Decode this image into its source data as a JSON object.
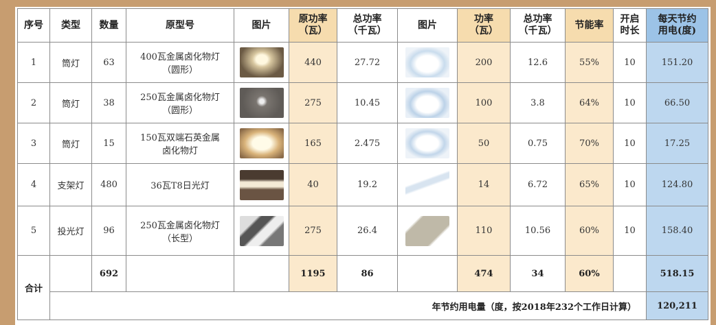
{
  "table": {
    "headers": [
      [
        "序号"
      ],
      [
        "类型"
      ],
      [
        "数量"
      ],
      [
        "原型号"
      ],
      [
        "图片"
      ],
      [
        "原功率",
        "（瓦）"
      ],
      [
        "总功率",
        "（千瓦）"
      ],
      [
        "图片"
      ],
      [
        "功率",
        "（瓦）"
      ],
      [
        "总功率",
        "（千瓦）"
      ],
      [
        "节能率"
      ],
      [
        "开启",
        "时长"
      ],
      [
        "每天节约",
        "用电(度)"
      ]
    ],
    "rows": [
      [
        "1",
        "筒灯",
        "63",
        [
          "400瓦金属卤化物灯",
          "（圆形）"
        ],
        "440",
        "27.72",
        "200",
        "12.6",
        "55%",
        "10",
        "151.20"
      ],
      [
        "2",
        "筒灯",
        "38",
        [
          "250瓦金属卤化物灯",
          "（圆形）"
        ],
        "275",
        "10.45",
        "100",
        "3.8",
        "64%",
        "10",
        "66.50"
      ],
      [
        "3",
        "筒灯",
        "15",
        [
          "150瓦双端石英金属",
          "卤化物灯"
        ],
        "165",
        "2.475",
        "50",
        "0.75",
        "70%",
        "10",
        "17.25"
      ],
      [
        "4",
        "支架灯",
        "480",
        [
          "36瓦T8日光灯"
        ],
        "40",
        "19.2",
        "14",
        "6.72",
        "65%",
        "10",
        "124.80"
      ],
      [
        "5",
        "投光灯",
        "96",
        [
          "250瓦金属卤化物灯",
          "（长型）"
        ],
        "275",
        "26.4",
        "110",
        "10.56",
        "60%",
        "10",
        "158.40"
      ]
    ],
    "total": {
      "label": "合计",
      "count": "692",
      "old_power": "1195",
      "old_total": "86",
      "new_power": "474",
      "new_total": "34",
      "rate": "60%",
      "daily": "518.15"
    },
    "annual": {
      "label": "年节约用电量（度，按2018年232个工作日计算）",
      "value": "120,211"
    }
  }
}
